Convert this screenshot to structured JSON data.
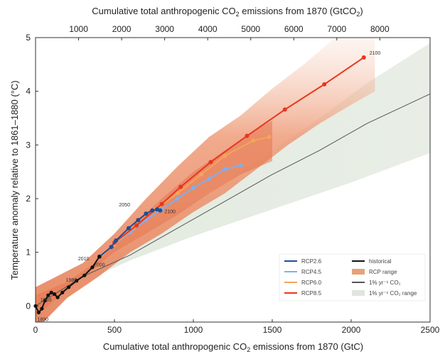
{
  "chart_data": {
    "type": "line",
    "xlabel": "Cumulative total anthropogenic CO2 emissions from 1870 (GtC)",
    "x2label": "Cumulative total anthropogenic CO2 emissions from 1870 (GtCO2)",
    "ylabel": "Temperature anomaly relative to 1861–1880 (°C)",
    "xlim": [
      0,
      2500
    ],
    "ylim": [
      -0.3,
      5
    ],
    "x_ticks": [
      0,
      500,
      1000,
      1500,
      2000,
      2500
    ],
    "y_ticks": [
      0,
      1,
      2,
      3,
      4,
      5
    ],
    "x2_ticks": [
      1000,
      2000,
      3000,
      4000,
      5000,
      6000,
      7000,
      8000
    ],
    "legend_position": "bottom-right",
    "legend": [
      {
        "label": "RCP2.6",
        "color": "#1f4e96",
        "kind": "line"
      },
      {
        "label": "historical",
        "color": "#111111",
        "kind": "line"
      },
      {
        "label": "RCP4.5",
        "color": "#7fb0e8",
        "kind": "line"
      },
      {
        "label": "RCP range",
        "color": "#e8a17a",
        "kind": "patch"
      },
      {
        "label": "RCP6.0",
        "color": "#f5a35c",
        "kind": "line"
      },
      {
        "label": "1% yr⁻¹ CO₂",
        "color": "#555555",
        "kind": "line"
      },
      {
        "label": "RCP8.5",
        "color": "#e8351f",
        "kind": "line"
      },
      {
        "label": "1% yr⁻¹ CO₂ range",
        "color": "#dfe6dd",
        "kind": "patch"
      }
    ],
    "series": [
      {
        "name": "historical",
        "color": "#111111",
        "labels": [
          "1890",
          "1950",
          "1980",
          "2000",
          "2010"
        ],
        "points": [
          [
            0,
            0.0
          ],
          [
            20,
            -0.12
          ],
          [
            40,
            -0.05
          ],
          [
            60,
            0.1
          ],
          [
            80,
            0.2
          ],
          [
            100,
            0.25
          ],
          [
            120,
            0.22
          ],
          [
            140,
            0.16
          ],
          [
            170,
            0.25
          ],
          [
            210,
            0.35
          ],
          [
            260,
            0.47
          ],
          [
            310,
            0.57
          ],
          [
            360,
            0.72
          ],
          [
            405,
            0.92
          ]
        ]
      },
      {
        "name": "RCP2.6",
        "color": "#1f4e96",
        "labels": [
          "2050",
          "2100"
        ],
        "points": [
          [
            405,
            0.92
          ],
          [
            480,
            1.1
          ],
          [
            510,
            1.22
          ],
          [
            590,
            1.45
          ],
          [
            650,
            1.6
          ],
          [
            700,
            1.72
          ],
          [
            740,
            1.78
          ],
          [
            770,
            1.8
          ],
          [
            790,
            1.78
          ]
        ]
      },
      {
        "name": "RCP4.5",
        "color": "#7fb0e8",
        "points": [
          [
            500,
            1.15
          ],
          [
            600,
            1.37
          ],
          [
            700,
            1.6
          ],
          [
            800,
            1.8
          ],
          [
            900,
            2.0
          ],
          [
            1000,
            2.2
          ],
          [
            1100,
            2.37
          ],
          [
            1200,
            2.55
          ],
          [
            1300,
            2.62
          ]
        ]
      },
      {
        "name": "RCP6.0",
        "color": "#f5a35c",
        "points": [
          [
            500,
            1.15
          ],
          [
            620,
            1.45
          ],
          [
            760,
            1.8
          ],
          [
            900,
            2.1
          ],
          [
            1050,
            2.45
          ],
          [
            1200,
            2.8
          ],
          [
            1380,
            3.08
          ],
          [
            1480,
            3.15
          ]
        ]
      },
      {
        "name": "RCP8.5",
        "color": "#e8351f",
        "labels": [
          "2100"
        ],
        "points": [
          [
            500,
            1.18
          ],
          [
            640,
            1.5
          ],
          [
            800,
            1.9
          ],
          [
            920,
            2.22
          ],
          [
            1110,
            2.68
          ],
          [
            1340,
            3.17
          ],
          [
            1580,
            3.66
          ],
          [
            1830,
            4.13
          ],
          [
            2080,
            4.63
          ]
        ]
      },
      {
        "name": "1% yr⁻¹ CO₂",
        "color": "#555555",
        "points": [
          [
            0,
            0
          ],
          [
            300,
            0.55
          ],
          [
            600,
            0.95
          ],
          [
            900,
            1.45
          ],
          [
            1200,
            1.95
          ],
          [
            1500,
            2.45
          ],
          [
            1800,
            2.9
          ],
          [
            2100,
            3.4
          ],
          [
            2500,
            3.95
          ]
        ]
      }
    ]
  }
}
